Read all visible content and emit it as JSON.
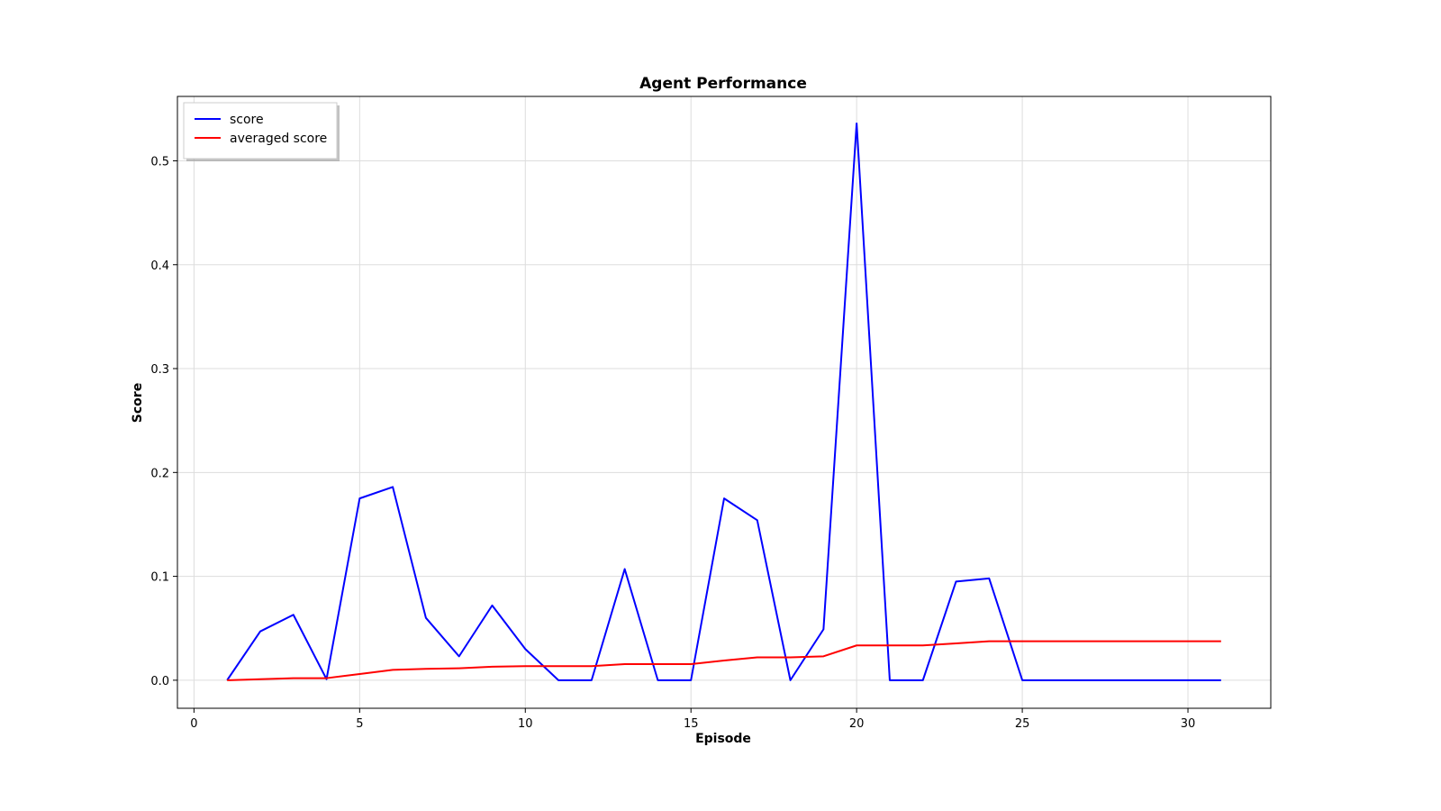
{
  "chart_data": {
    "type": "line",
    "title": "Agent Performance",
    "xlabel": "Episode",
    "ylabel": "Score",
    "xlim": [
      -0.5,
      32.5
    ],
    "ylim": [
      -0.027,
      0.562
    ],
    "xticks": [
      0,
      5,
      10,
      15,
      20,
      25,
      30
    ],
    "yticks": [
      0.0,
      0.1,
      0.2,
      0.3,
      0.4,
      0.5
    ],
    "ytick_labels": [
      "0.0",
      "0.1",
      "0.2",
      "0.3",
      "0.4",
      "0.5"
    ],
    "grid": true,
    "legend_position": "upper-left",
    "x": [
      1,
      2,
      3,
      4,
      5,
      6,
      7,
      8,
      9,
      10,
      11,
      12,
      13,
      14,
      15,
      16,
      17,
      18,
      19,
      20,
      21,
      22,
      23,
      24,
      25,
      26,
      27,
      28,
      29,
      30,
      31
    ],
    "series": [
      {
        "name": "score",
        "color": "#0000ff",
        "values": [
          0.0,
          0.047,
          0.063,
          0.001,
          0.175,
          0.186,
          0.06,
          0.023,
          0.072,
          0.03,
          0.0,
          0.0,
          0.107,
          0.0,
          0.0,
          0.175,
          0.154,
          0.0,
          0.049,
          0.536,
          0.0,
          0.0,
          0.095,
          0.098,
          0.0,
          0.0,
          0.0,
          0.0,
          0.0,
          0.0,
          0.0
        ]
      },
      {
        "name": "averaged score",
        "color": "#ff0000",
        "values": [
          0.0,
          0.001,
          0.002,
          0.002,
          0.006,
          0.01,
          0.011,
          0.0115,
          0.013,
          0.0135,
          0.0135,
          0.0135,
          0.0155,
          0.0155,
          0.0155,
          0.019,
          0.022,
          0.022,
          0.023,
          0.0335,
          0.0335,
          0.0335,
          0.0355,
          0.0375,
          0.0375,
          0.0375,
          0.0375,
          0.0375,
          0.0375,
          0.0375,
          0.0375
        ]
      }
    ]
  }
}
